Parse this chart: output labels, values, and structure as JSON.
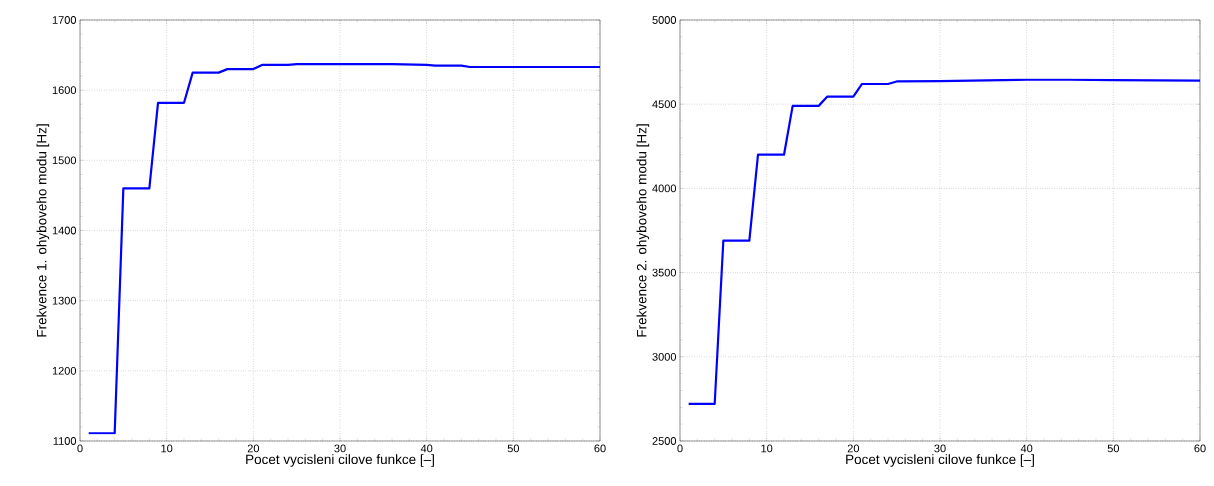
{
  "chart_data": [
    {
      "type": "line",
      "xlabel": "Pocet vycisleni cilove funkce [–]",
      "ylabel": "Frekvence 1. ohyboveho modu [Hz]",
      "color": "#0000ff",
      "x": [
        1,
        4,
        5,
        8,
        9,
        12,
        13,
        16,
        17,
        20,
        21,
        24,
        25,
        30,
        36,
        40,
        41,
        44,
        45,
        50,
        60
      ],
      "values": [
        1111,
        1111,
        1460,
        1460,
        1582,
        1582,
        1625,
        1625,
        1630,
        1630,
        1636,
        1636,
        1637,
        1637,
        1637,
        1636,
        1635,
        1635,
        1633,
        1633,
        1633
      ],
      "xlim": [
        0,
        60
      ],
      "ylim": [
        1100,
        1700
      ],
      "xticks": [
        0,
        10,
        20,
        30,
        40,
        50,
        60
      ],
      "yticks": [
        1100,
        1200,
        1300,
        1400,
        1500,
        1600,
        1700
      ],
      "grid": true
    },
    {
      "type": "line",
      "xlabel": "Pocet vycisleni cilove funkce [–]",
      "ylabel": "Frekvence 2. ohyboveho modu [Hz]",
      "color": "#0000ff",
      "x": [
        1,
        4,
        5,
        8,
        9,
        12,
        13,
        16,
        17,
        20,
        21,
        24,
        25,
        30,
        40,
        45,
        50,
        60
      ],
      "values": [
        2720,
        2720,
        3690,
        3690,
        4200,
        4200,
        4490,
        4490,
        4545,
        4545,
        4620,
        4620,
        4635,
        4637,
        4645,
        4645,
        4643,
        4640
      ],
      "xlim": [
        0,
        60
      ],
      "ylim": [
        2500,
        5000
      ],
      "xticks": [
        0,
        10,
        20,
        30,
        40,
        50,
        60
      ],
      "yticks": [
        2500,
        3000,
        3500,
        4000,
        4500,
        5000
      ],
      "grid": true
    }
  ]
}
